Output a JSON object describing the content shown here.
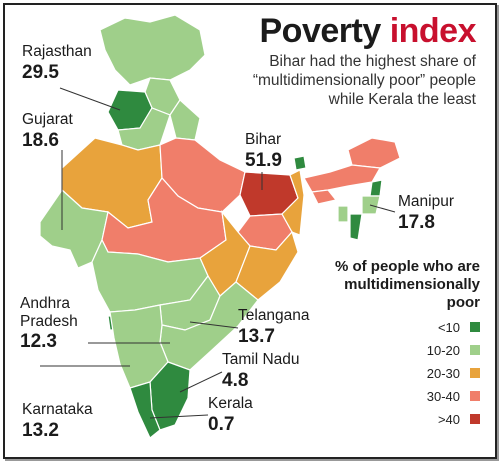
{
  "header": {
    "title_main": "Poverty ",
    "title_accent": "index",
    "subtitle": "Bihar had the highest share of “multidimensionally poor” people while Kerala the least"
  },
  "colors": {
    "lt10": "#2f8a3f",
    "b10_20": "#9fcf8a",
    "b20_30": "#e8a33c",
    "b30_40": "#f07e6a",
    "gt40": "#c0392b",
    "title_accent": "#c8102e"
  },
  "states": [
    {
      "name": "Rajasthan",
      "value": "29.5"
    },
    {
      "name": "Gujarat",
      "value": "18.6"
    },
    {
      "name": "Bihar",
      "value": "51.9"
    },
    {
      "name": "Manipur",
      "value": "17.8"
    },
    {
      "name": "Andhra Pradesh",
      "value": "12.3"
    },
    {
      "name": "Telangana",
      "value": "13.7"
    },
    {
      "name": "Tamil Nadu",
      "value": "4.8"
    },
    {
      "name": "Karnataka",
      "value": "13.2"
    },
    {
      "name": "Kerala",
      "value": "0.7"
    }
  ],
  "labels": {
    "rajasthan": {
      "name": "Rajasthan",
      "value": "29.5"
    },
    "gujarat": {
      "name": "Gujarat",
      "value": "18.6"
    },
    "bihar": {
      "name": "Bihar",
      "value": "51.9"
    },
    "manipur": {
      "name": "Manipur",
      "value": "17.8"
    },
    "andhra_line1": "Andhra",
    "andhra_line2": "Pradesh",
    "andhra_value": "12.3",
    "telangana": {
      "name": "Telangana",
      "value": "13.7"
    },
    "tamilnadu": {
      "name": "Tamil Nadu",
      "value": "4.8"
    },
    "karnataka": {
      "name": "Karnataka",
      "value": "13.2"
    },
    "kerala": {
      "name": "Kerala",
      "value": "0.7"
    }
  },
  "legend": {
    "title": "% of people who are multidimensionally poor",
    "items": [
      {
        "label": "<10",
        "color": "#2f8a3f"
      },
      {
        "label": "10-20",
        "color": "#9fcf8a"
      },
      {
        "label": "20-30",
        "color": "#e8a33c"
      },
      {
        "label": "30-40",
        "color": "#f07e6a"
      },
      {
        "label": ">40",
        "color": "#c0392b"
      }
    ]
  }
}
